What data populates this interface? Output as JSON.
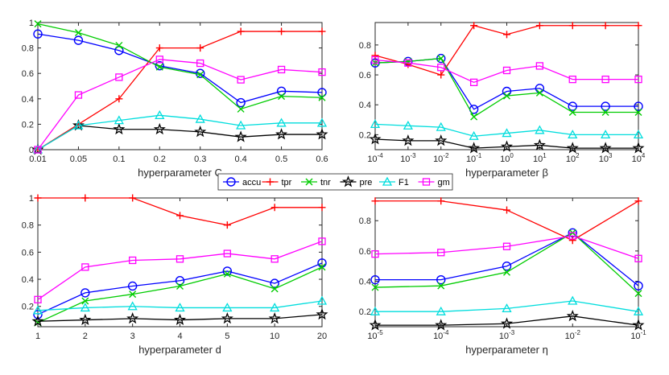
{
  "legend": [
    {
      "key": "accu",
      "label": "accu",
      "color": "#0000ff",
      "marker": "circle"
    },
    {
      "key": "tpr",
      "label": "tpr",
      "color": "#ff0000",
      "marker": "plus"
    },
    {
      "key": "tnr",
      "label": "tnr",
      "color": "#00cc00",
      "marker": "cross"
    },
    {
      "key": "pre",
      "label": "pre",
      "color": "#000000",
      "marker": "star"
    },
    {
      "key": "F1",
      "label": "F1",
      "color": "#00dddd",
      "marker": "triangle"
    },
    {
      "key": "gm",
      "label": "gm",
      "color": "#ff00ff",
      "marker": "square"
    }
  ],
  "chart_data": [
    {
      "type": "line",
      "xlabel": "hyperparameter C",
      "ylabel": "",
      "categories": [
        "0.01",
        "0.05",
        "0.1",
        "0.2",
        "0.3",
        "0.4",
        "0.5",
        "0.6"
      ],
      "xticks": [
        "0.01",
        "0.05",
        "0.1",
        "0.2",
        "0.3",
        "0.4",
        "0.5",
        "0.6"
      ],
      "ylim": [
        0,
        1
      ],
      "yticks": [
        "0",
        "0.2",
        "0.4",
        "0.6",
        "0.8",
        "1"
      ],
      "series": [
        {
          "name": "accu",
          "values": [
            0.91,
            0.86,
            0.78,
            0.66,
            0.6,
            0.37,
            0.46,
            0.45
          ]
        },
        {
          "name": "tpr",
          "values": [
            0.0,
            0.2,
            0.4,
            0.8,
            0.8,
            0.93,
            0.93,
            0.93
          ]
        },
        {
          "name": "tnr",
          "values": [
            0.99,
            0.92,
            0.82,
            0.65,
            0.59,
            0.32,
            0.42,
            0.41
          ]
        },
        {
          "name": "pre",
          "values": [
            0.0,
            0.19,
            0.16,
            0.16,
            0.14,
            0.1,
            0.12,
            0.12
          ]
        },
        {
          "name": "F1",
          "values": [
            0.0,
            0.19,
            0.23,
            0.27,
            0.24,
            0.19,
            0.21,
            0.21
          ]
        },
        {
          "name": "gm",
          "values": [
            0.0,
            0.43,
            0.57,
            0.71,
            0.68,
            0.55,
            0.63,
            0.61
          ]
        }
      ]
    },
    {
      "type": "line",
      "xlabel": "hyperparameter β",
      "ylabel": "",
      "categories": [
        "10^-4",
        "10^-3",
        "10^-2",
        "10^-1",
        "10^0",
        "10^1",
        "10^2",
        "10^3",
        "10^4"
      ],
      "xticks": [
        {
          "base": "10",
          "exp": "-4"
        },
        {
          "base": "10",
          "exp": "-3"
        },
        {
          "base": "10",
          "exp": "-2"
        },
        {
          "base": "10",
          "exp": "-1"
        },
        {
          "base": "10",
          "exp": "0"
        },
        {
          "base": "10",
          "exp": "1"
        },
        {
          "base": "10",
          "exp": "2"
        },
        {
          "base": "10",
          "exp": "3"
        },
        {
          "base": "10",
          "exp": "4"
        }
      ],
      "ylim": [
        0.1,
        0.95
      ],
      "yticks": [
        "0.2",
        "0.4",
        "0.6",
        "0.8"
      ],
      "series": [
        {
          "name": "accu",
          "values": [
            0.68,
            0.69,
            0.71,
            0.37,
            0.49,
            0.51,
            0.39,
            0.39,
            0.39
          ]
        },
        {
          "name": "tpr",
          "values": [
            0.73,
            0.67,
            0.6,
            0.93,
            0.87,
            0.93,
            0.93,
            0.93,
            0.93
          ]
        },
        {
          "name": "tnr",
          "values": [
            0.68,
            0.69,
            0.71,
            0.32,
            0.46,
            0.48,
            0.35,
            0.35,
            0.35
          ]
        },
        {
          "name": "pre",
          "values": [
            0.17,
            0.16,
            0.16,
            0.11,
            0.12,
            0.13,
            0.11,
            0.11,
            0.11
          ]
        },
        {
          "name": "F1",
          "values": [
            0.27,
            0.26,
            0.25,
            0.19,
            0.21,
            0.23,
            0.2,
            0.2,
            0.2
          ]
        },
        {
          "name": "gm",
          "values": [
            0.7,
            0.68,
            0.65,
            0.55,
            0.63,
            0.66,
            0.57,
            0.57,
            0.57
          ]
        }
      ]
    },
    {
      "type": "line",
      "xlabel": "hyperparameter d",
      "ylabel": "",
      "categories": [
        "1",
        "2",
        "3",
        "4",
        "5",
        "10",
        "20"
      ],
      "xticks": [
        "1",
        "2",
        "3",
        "4",
        "5",
        "10",
        "20"
      ],
      "ylim": [
        0.05,
        1
      ],
      "yticks": [
        "0.2",
        "0.4",
        "0.6",
        "0.8",
        "1"
      ],
      "series": [
        {
          "name": "accu",
          "values": [
            0.14,
            0.3,
            0.35,
            0.39,
            0.46,
            0.37,
            0.52
          ]
        },
        {
          "name": "tpr",
          "values": [
            1.0,
            1.0,
            1.0,
            0.87,
            0.8,
            0.93,
            0.93
          ]
        },
        {
          "name": "tnr",
          "values": [
            0.08,
            0.24,
            0.29,
            0.35,
            0.44,
            0.33,
            0.49
          ]
        },
        {
          "name": "pre",
          "values": [
            0.09,
            0.1,
            0.11,
            0.1,
            0.11,
            0.11,
            0.14
          ]
        },
        {
          "name": "F1",
          "values": [
            0.17,
            0.19,
            0.2,
            0.19,
            0.19,
            0.19,
            0.24
          ]
        },
        {
          "name": "gm",
          "values": [
            0.25,
            0.49,
            0.54,
            0.55,
            0.59,
            0.55,
            0.68
          ]
        }
      ]
    },
    {
      "type": "line",
      "xlabel": "hyperparameter η",
      "ylabel": "",
      "categories": [
        "10^-5",
        "10^-4",
        "10^-3",
        "10^-2",
        "10^-1"
      ],
      "xticks": [
        {
          "base": "10",
          "exp": "-5"
        },
        {
          "base": "10",
          "exp": "-4"
        },
        {
          "base": "10",
          "exp": "-3"
        },
        {
          "base": "10",
          "exp": "-2"
        },
        {
          "base": "10",
          "exp": "-1"
        }
      ],
      "ylim": [
        0.1,
        0.95
      ],
      "yticks": [
        "0.2",
        "0.4",
        "0.6",
        "0.8"
      ],
      "series": [
        {
          "name": "accu",
          "values": [
            0.41,
            0.41,
            0.5,
            0.72,
            0.37
          ]
        },
        {
          "name": "tpr",
          "values": [
            0.93,
            0.93,
            0.87,
            0.67,
            0.93
          ]
        },
        {
          "name": "tnr",
          "values": [
            0.36,
            0.37,
            0.46,
            0.72,
            0.32
          ]
        },
        {
          "name": "pre",
          "values": [
            0.11,
            0.11,
            0.12,
            0.17,
            0.11
          ]
        },
        {
          "name": "F1",
          "values": [
            0.2,
            0.2,
            0.22,
            0.27,
            0.2
          ]
        },
        {
          "name": "gm",
          "values": [
            0.58,
            0.59,
            0.63,
            0.7,
            0.55
          ]
        }
      ]
    }
  ]
}
